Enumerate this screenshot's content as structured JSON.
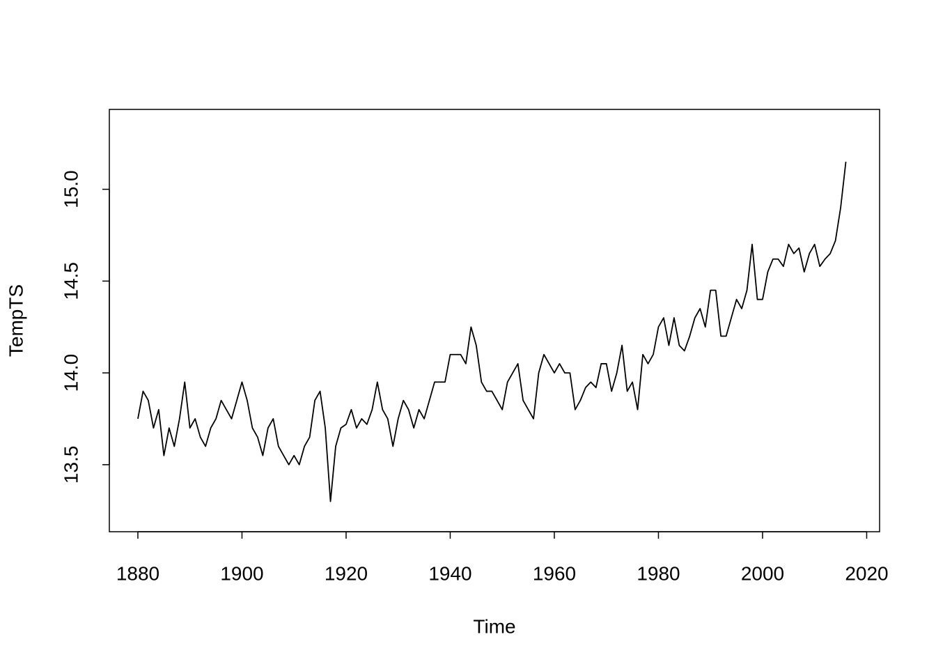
{
  "chart_data": {
    "type": "line",
    "x_label": "Time",
    "y_label": "TempTS",
    "x": [
      1880,
      1881,
      1882,
      1883,
      1884,
      1885,
      1886,
      1887,
      1888,
      1889,
      1890,
      1891,
      1892,
      1893,
      1894,
      1895,
      1896,
      1897,
      1898,
      1899,
      1900,
      1901,
      1902,
      1903,
      1904,
      1905,
      1906,
      1907,
      1908,
      1909,
      1910,
      1911,
      1912,
      1913,
      1914,
      1915,
      1916,
      1917,
      1918,
      1919,
      1920,
      1921,
      1922,
      1923,
      1924,
      1925,
      1926,
      1927,
      1928,
      1929,
      1930,
      1931,
      1932,
      1933,
      1934,
      1935,
      1936,
      1937,
      1938,
      1939,
      1940,
      1941,
      1942,
      1943,
      1944,
      1945,
      1946,
      1947,
      1948,
      1949,
      1950,
      1951,
      1952,
      1953,
      1954,
      1955,
      1956,
      1957,
      1958,
      1959,
      1960,
      1961,
      1962,
      1963,
      1964,
      1965,
      1966,
      1967,
      1968,
      1969,
      1970,
      1971,
      1972,
      1973,
      1974,
      1975,
      1976,
      1977,
      1978,
      1979,
      1980,
      1981,
      1982,
      1983,
      1984,
      1985,
      1986,
      1987,
      1988,
      1989,
      1990,
      1991,
      1992,
      1993,
      1994,
      1995,
      1996,
      1997,
      1998,
      1999,
      2000,
      2001,
      2002,
      2003,
      2004,
      2005,
      2006,
      2007,
      2008,
      2009,
      2010,
      2011,
      2012,
      2013,
      2014,
      2015,
      2016
    ],
    "series": [
      {
        "name": "TempTS",
        "color": "#000000",
        "values": [
          13.75,
          13.9,
          13.85,
          13.7,
          13.8,
          13.55,
          13.7,
          13.6,
          13.75,
          13.95,
          13.7,
          13.75,
          13.65,
          13.6,
          13.7,
          13.75,
          13.85,
          13.8,
          13.75,
          13.85,
          13.95,
          13.85,
          13.7,
          13.65,
          13.55,
          13.7,
          13.75,
          13.6,
          13.55,
          13.5,
          13.55,
          13.5,
          13.6,
          13.65,
          13.85,
          13.9,
          13.7,
          13.3,
          13.6,
          13.7,
          13.72,
          13.8,
          13.7,
          13.75,
          13.72,
          13.8,
          13.95,
          13.8,
          13.75,
          13.6,
          13.75,
          13.85,
          13.8,
          13.7,
          13.8,
          13.75,
          13.85,
          13.95,
          13.95,
          13.95,
          14.1,
          14.1,
          14.1,
          14.05,
          14.25,
          14.15,
          13.95,
          13.9,
          13.9,
          13.85,
          13.8,
          13.95,
          14.0,
          14.05,
          13.85,
          13.8,
          13.75,
          14.0,
          14.1,
          14.05,
          14.0,
          14.05,
          14.0,
          14.0,
          13.8,
          13.85,
          13.92,
          13.95,
          13.92,
          14.05,
          14.05,
          13.9,
          14.0,
          14.15,
          13.9,
          13.95,
          13.8,
          14.1,
          14.05,
          14.1,
          14.25,
          14.3,
          14.15,
          14.3,
          14.15,
          14.12,
          14.2,
          14.3,
          14.35,
          14.25,
          14.45,
          14.45,
          14.2,
          14.2,
          14.3,
          14.4,
          14.35,
          14.45,
          14.7,
          14.4,
          14.4,
          14.55,
          14.62,
          14.62,
          14.58,
          14.7,
          14.65,
          14.68,
          14.55,
          14.65,
          14.7,
          14.58,
          14.62,
          14.65,
          14.72,
          14.9,
          15.15
        ]
      }
    ],
    "xlim": [
      1874.52,
      2022.48
    ],
    "ylim": [
      13.135,
      15.435
    ],
    "xticks": [
      1880,
      1900,
      1920,
      1940,
      1960,
      1980,
      2000,
      2020
    ],
    "yticks": [
      {
        "value": 13.5,
        "label": "13.5"
      },
      {
        "value": 14.0,
        "label": "14.0"
      },
      14.5,
      {
        "value": 15.0,
        "label": "15.0"
      }
    ]
  }
}
